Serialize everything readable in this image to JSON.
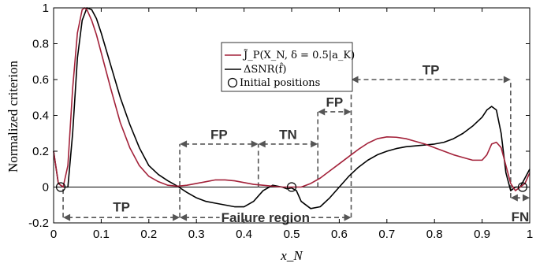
{
  "chart_data": {
    "type": "line",
    "xlabel": "x_N",
    "ylabel": "Normalized criterion",
    "xlim": [
      0,
      1
    ],
    "ylim": [
      -0.2,
      1
    ],
    "grid": false,
    "legend_position": "top-center",
    "x_ticks": [
      "0",
      "0.1",
      "0.2",
      "0.3",
      "0.4",
      "0.5",
      "0.6",
      "0.7",
      "0.8",
      "0.9",
      "1"
    ],
    "y_ticks": [
      "-0.2",
      "0",
      "0.2",
      "0.4",
      "0.6",
      "0.8",
      "1"
    ],
    "x_tick_values": [
      0,
      0.1,
      0.2,
      0.3,
      0.4,
      0.5,
      0.6,
      0.7,
      0.8,
      0.9,
      1
    ],
    "y_tick_values": [
      -0.2,
      0,
      0.2,
      0.4,
      0.6,
      0.8,
      1
    ],
    "series": [
      {
        "name": "J̃_P(X_N, δ = 0.5|a_K)",
        "color": "#a3223a",
        "x": [
          0.0,
          0.01,
          0.02,
          0.03,
          0.04,
          0.05,
          0.06,
          0.065,
          0.07,
          0.08,
          0.09,
          0.1,
          0.12,
          0.14,
          0.16,
          0.18,
          0.2,
          0.22,
          0.24,
          0.26,
          0.28,
          0.3,
          0.32,
          0.34,
          0.36,
          0.38,
          0.4,
          0.42,
          0.44,
          0.46,
          0.48,
          0.5,
          0.52,
          0.54,
          0.56,
          0.58,
          0.6,
          0.62,
          0.64,
          0.66,
          0.68,
          0.7,
          0.72,
          0.74,
          0.76,
          0.78,
          0.8,
          0.82,
          0.84,
          0.86,
          0.88,
          0.9,
          0.91,
          0.92,
          0.93,
          0.94,
          0.95,
          0.96,
          0.97,
          0.98,
          0.99,
          1.0
        ],
        "y": [
          0.2,
          0.02,
          0.0,
          0.12,
          0.55,
          0.86,
          0.99,
          1.0,
          0.99,
          0.93,
          0.85,
          0.75,
          0.55,
          0.36,
          0.22,
          0.12,
          0.06,
          0.03,
          0.01,
          0.005,
          0.01,
          0.02,
          0.03,
          0.04,
          0.04,
          0.035,
          0.025,
          0.015,
          0.01,
          0.005,
          0.0,
          0.0,
          0.0,
          0.02,
          0.05,
          0.09,
          0.13,
          0.17,
          0.21,
          0.245,
          0.27,
          0.28,
          0.278,
          0.27,
          0.255,
          0.24,
          0.22,
          0.2,
          0.18,
          0.165,
          0.15,
          0.15,
          0.18,
          0.24,
          0.25,
          0.22,
          0.12,
          0.02,
          -0.02,
          0.0,
          0.02,
          0.08
        ]
      },
      {
        "name": "ΔSNR(f̂)",
        "color": "#000000",
        "x": [
          0.0,
          0.01,
          0.02,
          0.03,
          0.04,
          0.05,
          0.06,
          0.07,
          0.08,
          0.09,
          0.1,
          0.12,
          0.14,
          0.16,
          0.18,
          0.2,
          0.22,
          0.24,
          0.26,
          0.28,
          0.3,
          0.32,
          0.34,
          0.36,
          0.38,
          0.4,
          0.42,
          0.44,
          0.46,
          0.48,
          0.49,
          0.5,
          0.51,
          0.52,
          0.54,
          0.56,
          0.58,
          0.6,
          0.62,
          0.64,
          0.66,
          0.68,
          0.7,
          0.72,
          0.74,
          0.76,
          0.78,
          0.8,
          0.82,
          0.84,
          0.86,
          0.88,
          0.9,
          0.91,
          0.92,
          0.93,
          0.94,
          0.95,
          0.96,
          0.97,
          0.98,
          0.99,
          1.0
        ],
        "y": [
          0.2,
          0.02,
          0.0,
          0.0,
          0.3,
          0.72,
          0.93,
          1.0,
          0.99,
          0.94,
          0.86,
          0.68,
          0.5,
          0.35,
          0.22,
          0.12,
          0.07,
          0.035,
          0.005,
          -0.03,
          -0.06,
          -0.08,
          -0.09,
          -0.1,
          -0.11,
          -0.11,
          -0.08,
          -0.02,
          0.01,
          0.0,
          -0.01,
          -0.005,
          -0.02,
          -0.08,
          -0.12,
          -0.11,
          -0.06,
          0.0,
          0.06,
          0.11,
          0.15,
          0.18,
          0.2,
          0.215,
          0.225,
          0.23,
          0.235,
          0.24,
          0.25,
          0.27,
          0.3,
          0.34,
          0.39,
          0.43,
          0.45,
          0.43,
          0.3,
          0.08,
          -0.02,
          0.0,
          0.0,
          0.05,
          0.1
        ]
      }
    ],
    "markers": {
      "name": "Initial positions",
      "points": [
        [
          0.015,
          0.0
        ],
        [
          0.5,
          0.0
        ],
        [
          0.985,
          0.0
        ]
      ]
    },
    "legend_entries": [
      {
        "label": "J̃_P(X_N, δ = 0.5|a_K)",
        "color": "#a3223a",
        "kind": "line"
      },
      {
        "label": "ΔSNR(f̂)",
        "color": "#000000",
        "kind": "line"
      },
      {
        "label": "Initial positions",
        "color": "#000000",
        "kind": "circle"
      }
    ],
    "regions": [
      {
        "label": "TP",
        "x0": 0.02,
        "x1": 0.265,
        "y": -0.17,
        "label_y": -0.11
      },
      {
        "label": "Failure region",
        "x0": 0.265,
        "x1": 0.625,
        "y": -0.17,
        "label_y": -0.17
      },
      {
        "label": "FP",
        "x0": 0.265,
        "x1": 0.43,
        "y": 0.24,
        "label_y": 0.295
      },
      {
        "label": "TN",
        "x0": 0.43,
        "x1": 0.555,
        "y": 0.24,
        "label_y": 0.295
      },
      {
        "label": "FP",
        "x0": 0.555,
        "x1": 0.625,
        "y": 0.42,
        "label_y": 0.475
      },
      {
        "label": "TP",
        "x0": 0.625,
        "x1": 0.96,
        "y": 0.6,
        "label_y": 0.655
      },
      {
        "label": "FN",
        "x0": 0.96,
        "x1": 1.0,
        "y": -0.06,
        "label_y": -0.165
      }
    ],
    "verticals": [
      {
        "x": 0.02,
        "y0": -0.17,
        "y1": 0.0
      },
      {
        "x": 0.265,
        "y0": -0.17,
        "y1": 0.24
      },
      {
        "x": 0.43,
        "y0": 0.0,
        "y1": 0.24
      },
      {
        "x": 0.555,
        "y0": 0.0,
        "y1": 0.42
      },
      {
        "x": 0.625,
        "y0": -0.17,
        "y1": 0.6
      },
      {
        "x": 0.96,
        "y0": -0.06,
        "y1": 0.6
      }
    ]
  }
}
